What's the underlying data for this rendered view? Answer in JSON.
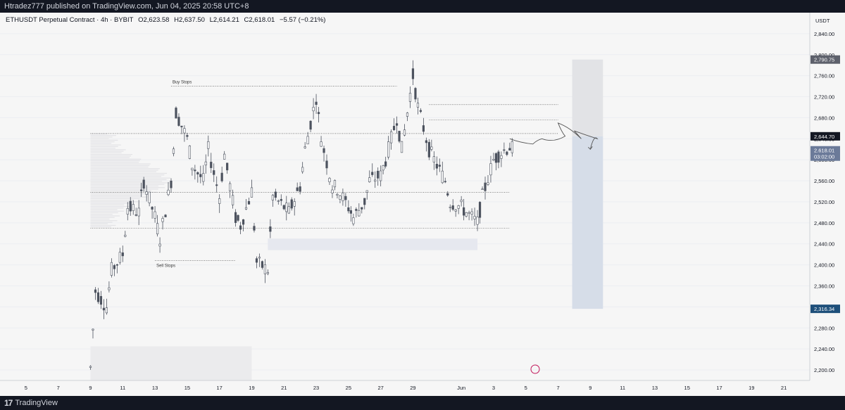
{
  "header": {
    "publish_line": "Htradez777 published on TradingView.com, Jun 04, 2025 20:58 UTC+8"
  },
  "legend": {
    "symbol": "ETHUSDT Perpetual Contract · 4h · BYBIT",
    "open": "O2,623.58",
    "high": "H2,637.50",
    "low": "L2,614.21",
    "close": "C2,618.01",
    "change": "−5.57 (−0.21%)"
  },
  "footer": {
    "brand": "TradingView"
  },
  "colors": {
    "candle_body": "#4c525e",
    "candle_fill": "#ffffff",
    "grid": "#eceef2",
    "short_stop": "#e2e3e6",
    "short_target": "#d6dde8",
    "current_price_tag": "#6b7a99",
    "target_tag": "#1e4f7a",
    "stop_tag": "#5d606b"
  },
  "chart_data": {
    "type": "candlestick",
    "currency": "USDT",
    "ylim": [
      2180,
      2880
    ],
    "y_ticks": [
      2200,
      2240,
      2280,
      2320,
      2360,
      2400,
      2440,
      2480,
      2520,
      2560,
      2600,
      2640,
      2680,
      2720,
      2760,
      2800,
      2840
    ],
    "y_tick_labels": [
      "2,200.00",
      "2,240.00",
      "2,280.00",
      "2,320.00",
      "2,360.00",
      "2,400.00",
      "2,440.00",
      "2,480.00",
      "2,520.00",
      "2,560.00",
      "2,600.00",
      "2,640.00",
      "2,680.00",
      "2,720.00",
      "2,760.00",
      "2,800.00",
      "2,840.00"
    ],
    "x_start": "2025-05-04",
    "x_end": "2025-06-22",
    "x_ticks": [
      {
        "date": "2025-05-05",
        "label": "5"
      },
      {
        "date": "2025-05-07",
        "label": "7"
      },
      {
        "date": "2025-05-09",
        "label": "9"
      },
      {
        "date": "2025-05-11",
        "label": "11"
      },
      {
        "date": "2025-05-13",
        "label": "13"
      },
      {
        "date": "2025-05-15",
        "label": "15"
      },
      {
        "date": "2025-05-17",
        "label": "17"
      },
      {
        "date": "2025-05-19",
        "label": "19"
      },
      {
        "date": "2025-05-21",
        "label": "21"
      },
      {
        "date": "2025-05-23",
        "label": "23"
      },
      {
        "date": "2025-05-25",
        "label": "25"
      },
      {
        "date": "2025-05-27",
        "label": "27"
      },
      {
        "date": "2025-05-29",
        "label": "29"
      },
      {
        "date": "2025-06-01",
        "label": "Jun"
      },
      {
        "date": "2025-06-03",
        "label": "3"
      },
      {
        "date": "2025-06-05",
        "label": "5"
      },
      {
        "date": "2025-06-07",
        "label": "7"
      },
      {
        "date": "2025-06-09",
        "label": "9"
      },
      {
        "date": "2025-06-11",
        "label": "11"
      },
      {
        "date": "2025-06-13",
        "label": "13"
      },
      {
        "date": "2025-06-15",
        "label": "15"
      },
      {
        "date": "2025-06-17",
        "label": "17"
      },
      {
        "date": "2025-06-19",
        "label": "19"
      },
      {
        "date": "2025-06-21",
        "label": "21"
      }
    ],
    "price_path": [
      {
        "date": "2025-05-09",
        "price": 2205
      },
      {
        "date": "2025-05-09",
        "price": 2350
      },
      {
        "date": "2025-05-10",
        "price": 2320
      },
      {
        "date": "2025-05-10",
        "price": 2390
      },
      {
        "date": "2025-05-11",
        "price": 2420
      },
      {
        "date": "2025-05-11",
        "price": 2510
      },
      {
        "date": "2025-05-12",
        "price": 2500
      },
      {
        "date": "2025-05-12",
        "price": 2560
      },
      {
        "date": "2025-05-13",
        "price": 2490
      },
      {
        "date": "2025-05-13",
        "price": 2450
      },
      {
        "date": "2025-05-14",
        "price": 2560
      },
      {
        "date": "2025-05-14",
        "price": 2690
      },
      {
        "date": "2025-05-15",
        "price": 2640
      },
      {
        "date": "2025-05-15",
        "price": 2590
      },
      {
        "date": "2025-05-16",
        "price": 2560
      },
      {
        "date": "2025-05-16",
        "price": 2620
      },
      {
        "date": "2025-05-17",
        "price": 2530
      },
      {
        "date": "2025-05-17",
        "price": 2610
      },
      {
        "date": "2025-05-18",
        "price": 2490
      },
      {
        "date": "2025-05-18",
        "price": 2475
      },
      {
        "date": "2025-05-19",
        "price": 2540
      },
      {
        "date": "2025-05-19",
        "price": 2405
      },
      {
        "date": "2025-05-20",
        "price": 2390
      },
      {
        "date": "2025-05-20",
        "price": 2530
      },
      {
        "date": "2025-05-21",
        "price": 2510
      },
      {
        "date": "2025-05-21",
        "price": 2500
      },
      {
        "date": "2025-05-22",
        "price": 2550
      },
      {
        "date": "2025-05-22",
        "price": 2620
      },
      {
        "date": "2025-05-23",
        "price": 2720
      },
      {
        "date": "2025-05-23",
        "price": 2640
      },
      {
        "date": "2025-05-24",
        "price": 2550
      },
      {
        "date": "2025-05-24",
        "price": 2545
      },
      {
        "date": "2025-05-25",
        "price": 2510
      },
      {
        "date": "2025-05-25",
        "price": 2490
      },
      {
        "date": "2025-05-26",
        "price": 2520
      },
      {
        "date": "2025-05-26",
        "price": 2560
      },
      {
        "date": "2025-05-27",
        "price": 2570
      },
      {
        "date": "2025-05-27",
        "price": 2600
      },
      {
        "date": "2025-05-28",
        "price": 2680
      },
      {
        "date": "2025-05-28",
        "price": 2620
      },
      {
        "date": "2025-05-29",
        "price": 2760
      },
      {
        "date": "2025-05-29",
        "price": 2700
      },
      {
        "date": "2025-05-30",
        "price": 2620
      },
      {
        "date": "2025-05-30",
        "price": 2600
      },
      {
        "date": "2025-05-31",
        "price": 2560
      },
      {
        "date": "2025-05-31",
        "price": 2520
      },
      {
        "date": "2025-06-01",
        "price": 2510
      },
      {
        "date": "2025-06-01",
        "price": 2500
      },
      {
        "date": "2025-06-02",
        "price": 2480
      },
      {
        "date": "2025-06-02",
        "price": 2530
      },
      {
        "date": "2025-06-03",
        "price": 2600
      },
      {
        "date": "2025-06-03",
        "price": 2610
      },
      {
        "date": "2025-06-04",
        "price": 2625
      },
      {
        "date": "2025-06-04",
        "price": 2618
      }
    ],
    "annotations": [
      {
        "text": "Buy Stops",
        "date": "2025-05-14",
        "price": 2740,
        "line_to": "2025-05-28"
      },
      {
        "text": "Sell Stops",
        "date": "2025-05-13",
        "price": 2408,
        "line_to": "2025-05-18"
      }
    ],
    "levels": [
      {
        "price": 2705,
        "from": "2025-05-30",
        "to": "2025-06-07"
      },
      {
        "price": 2676,
        "from": "2025-05-30",
        "to": "2025-06-07"
      },
      {
        "price": 2650,
        "from": "2025-05-09",
        "to": "2025-06-07"
      },
      {
        "price": 2538,
        "from": "2025-05-09",
        "to": "2025-06-04"
      },
      {
        "price": 2470,
        "from": "2025-05-09",
        "to": "2025-06-04"
      }
    ],
    "zones": [
      {
        "from": "2025-05-20",
        "to": "2025-06-02",
        "low": 2428,
        "high": 2450
      },
      {
        "from": "2025-05-09",
        "to": "2025-05-19",
        "low": 2180,
        "high": 2245
      }
    ],
    "short_position": {
      "from": "2025-06-07",
      "to": "2025-06-09",
      "entry": 2644.7,
      "stop": 2790.75,
      "target": 2316.34
    },
    "projection": [
      {
        "date": "2025-06-04",
        "price": 2640
      },
      {
        "date": "2025-06-05",
        "price": 2630
      },
      {
        "date": "2025-06-06",
        "price": 2640
      },
      {
        "date": "2025-06-07",
        "price": 2645
      },
      {
        "date": "2025-06-07",
        "price": 2670
      },
      {
        "date": "2025-06-08",
        "price": 2640
      },
      {
        "date": "2025-06-08",
        "price": 2655
      },
      {
        "date": "2025-06-09",
        "price": 2640
      },
      {
        "date": "2025-06-09",
        "price": 2620
      }
    ],
    "price_tags": [
      {
        "label": "2,790.75",
        "price": 2790.75,
        "kind": "stop"
      },
      {
        "label": "2,644.70",
        "price": 2644.7,
        "kind": "entry"
      },
      {
        "label": "2,618.01",
        "price": 2618.01,
        "kind": "current"
      },
      {
        "label": "03:02:00",
        "price": 2606,
        "kind": "countdown"
      },
      {
        "label": "2,316.34",
        "price": 2316.34,
        "kind": "target"
      }
    ]
  }
}
